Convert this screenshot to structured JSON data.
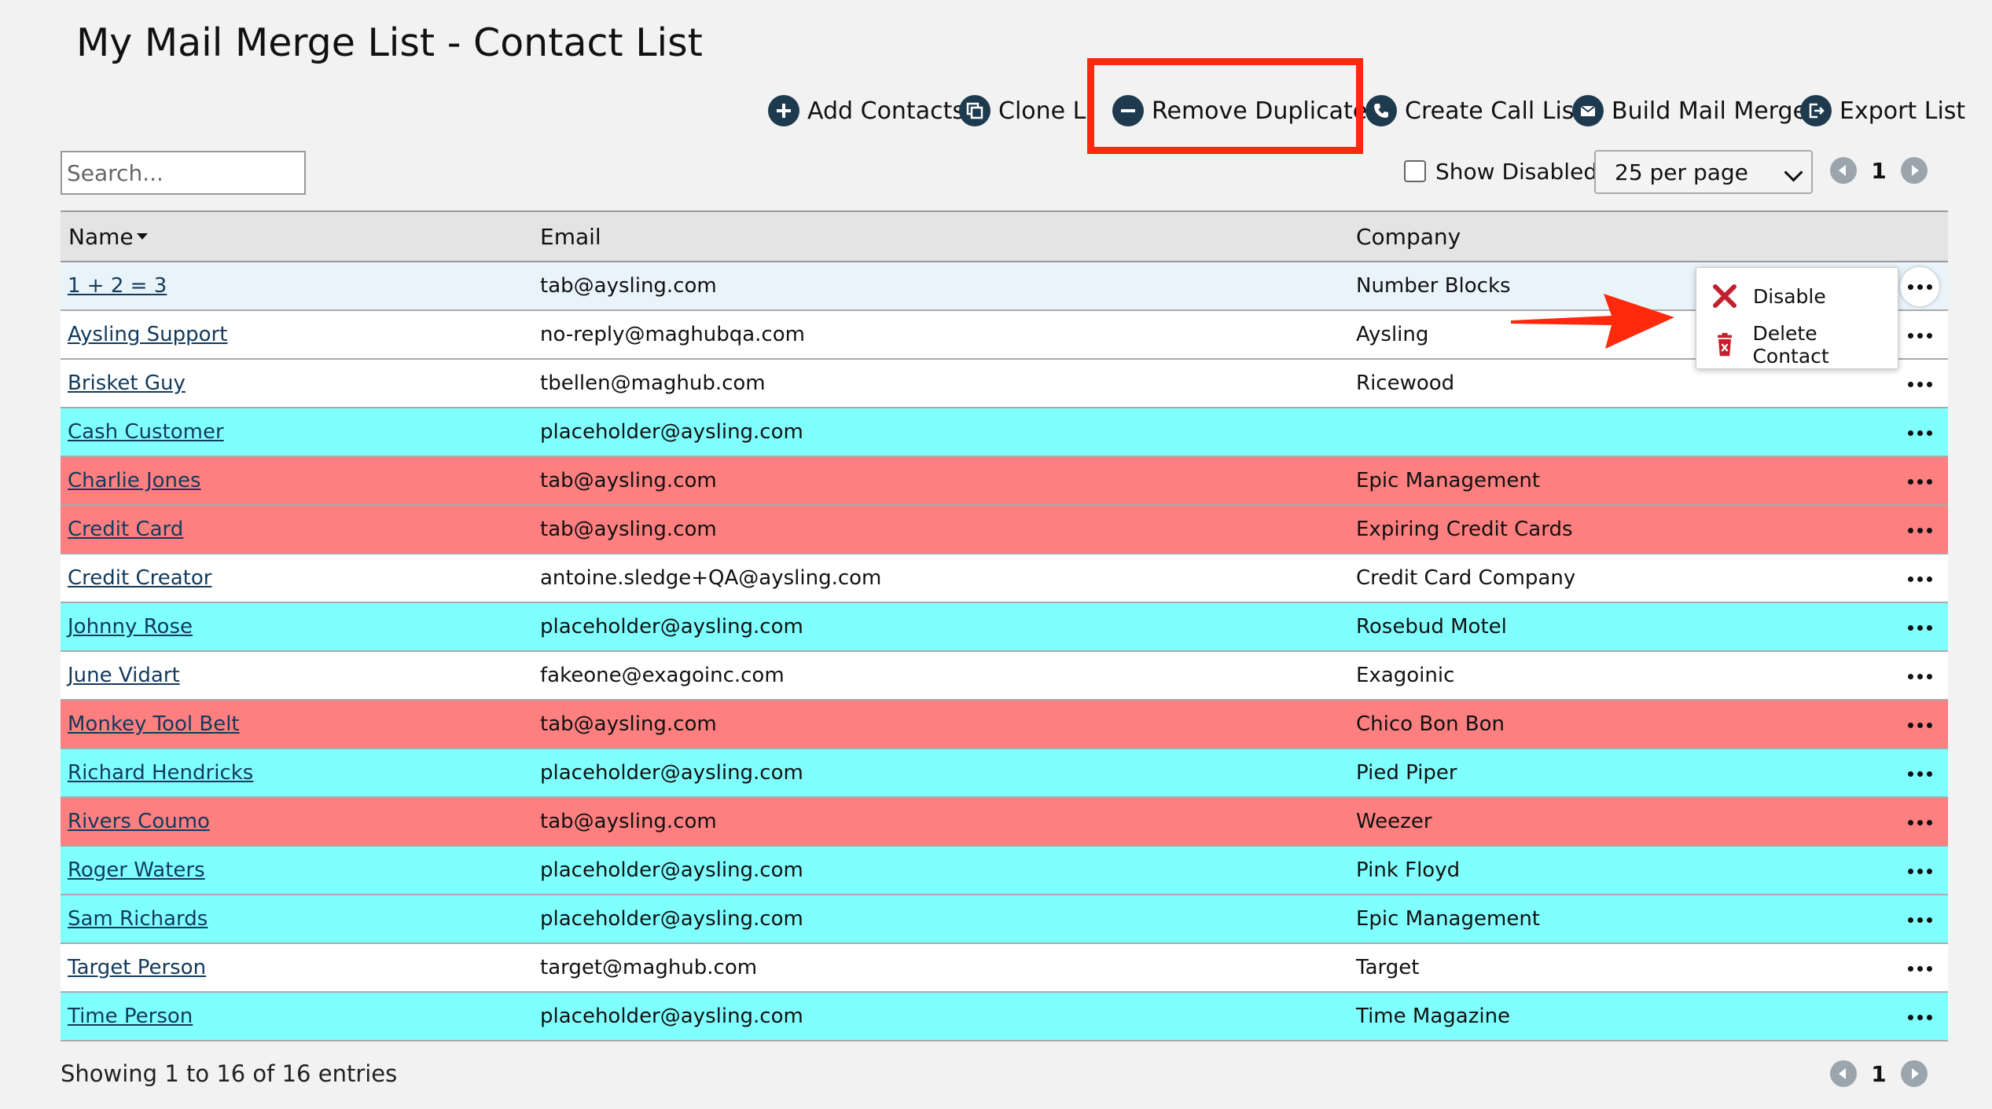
{
  "page": {
    "title": "My Mail Merge List - Contact List"
  },
  "toolbar": {
    "add_contacts": "Add Contacts",
    "clone_list": "Clone List",
    "remove_duplicates": "Remove Duplicates",
    "create_call_list": "Create Call List",
    "build_mail_merge": "Build Mail Merge",
    "export_list": "Export List"
  },
  "controls": {
    "search_placeholder": "Search...",
    "show_disabled_label": "Show Disabled",
    "show_disabled_checked": false,
    "per_page": "25 per page",
    "current_page": "1"
  },
  "table": {
    "headers": {
      "name": "Name",
      "email": "Email",
      "company": "Company"
    },
    "rows": [
      {
        "name": "1 + 2 = 3",
        "email": "tab@aysling.com",
        "company": "Number Blocks",
        "status": "selected"
      },
      {
        "name": "Aysling Support",
        "email": "no-reply@maghubqa.com",
        "company": "Aysling",
        "status": "normal"
      },
      {
        "name": "Brisket Guy",
        "email": "tbellen@maghub.com",
        "company": "Ricewood",
        "status": "normal"
      },
      {
        "name": "Cash Customer",
        "email": "placeholder@aysling.com",
        "company": "",
        "status": "cyan"
      },
      {
        "name": "Charlie Jones",
        "email": "tab@aysling.com",
        "company": "Epic Management",
        "status": "red"
      },
      {
        "name": "Credit Card",
        "email": "tab@aysling.com",
        "company": "Expiring Credit Cards",
        "status": "red"
      },
      {
        "name": "Credit Creator",
        "email": "antoine.sledge+QA@aysling.com",
        "company": "Credit Card Company",
        "status": "normal"
      },
      {
        "name": "Johnny Rose",
        "email": "placeholder@aysling.com",
        "company": "Rosebud Motel",
        "status": "cyan"
      },
      {
        "name": "June Vidart",
        "email": "fakeone@exagoinc.com",
        "company": "Exagoinic",
        "status": "normal"
      },
      {
        "name": "Monkey Tool Belt",
        "email": "tab@aysling.com",
        "company": "Chico Bon Bon",
        "status": "red"
      },
      {
        "name": "Richard Hendricks",
        "email": "placeholder@aysling.com",
        "company": "Pied Piper",
        "status": "cyan"
      },
      {
        "name": "Rivers Coumo",
        "email": "tab@aysling.com",
        "company": "Weezer",
        "status": "red"
      },
      {
        "name": "Roger Waters",
        "email": "placeholder@aysling.com",
        "company": "Pink Floyd",
        "status": "cyan"
      },
      {
        "name": "Sam Richards",
        "email": "placeholder@aysling.com",
        "company": "Epic Management",
        "status": "cyan"
      },
      {
        "name": "Target Person",
        "email": "target@maghub.com",
        "company": "Target",
        "status": "normal"
      },
      {
        "name": "Time Person",
        "email": "placeholder@aysling.com",
        "company": "Time Magazine",
        "status": "cyan"
      }
    ]
  },
  "context_menu": {
    "disable": "Disable",
    "delete_contact": "Delete Contact"
  },
  "footer": {
    "entries_text": "Showing 1 to 16 of 16 entries"
  },
  "colors": {
    "icon_navy": "#1e3a4e",
    "highlight_red": "#ff2a0d",
    "duplicate_red": "#fe7f7f",
    "duplicate_cyan": "#80ffff",
    "link": "#123a5c"
  },
  "icons": {
    "add_contacts": "plus-circle-icon",
    "clone_list": "clone-icon",
    "remove_duplicates": "minus-circle-icon",
    "create_call_list": "phone-icon",
    "build_mail_merge": "envelope-icon",
    "export_list": "export-icon"
  }
}
